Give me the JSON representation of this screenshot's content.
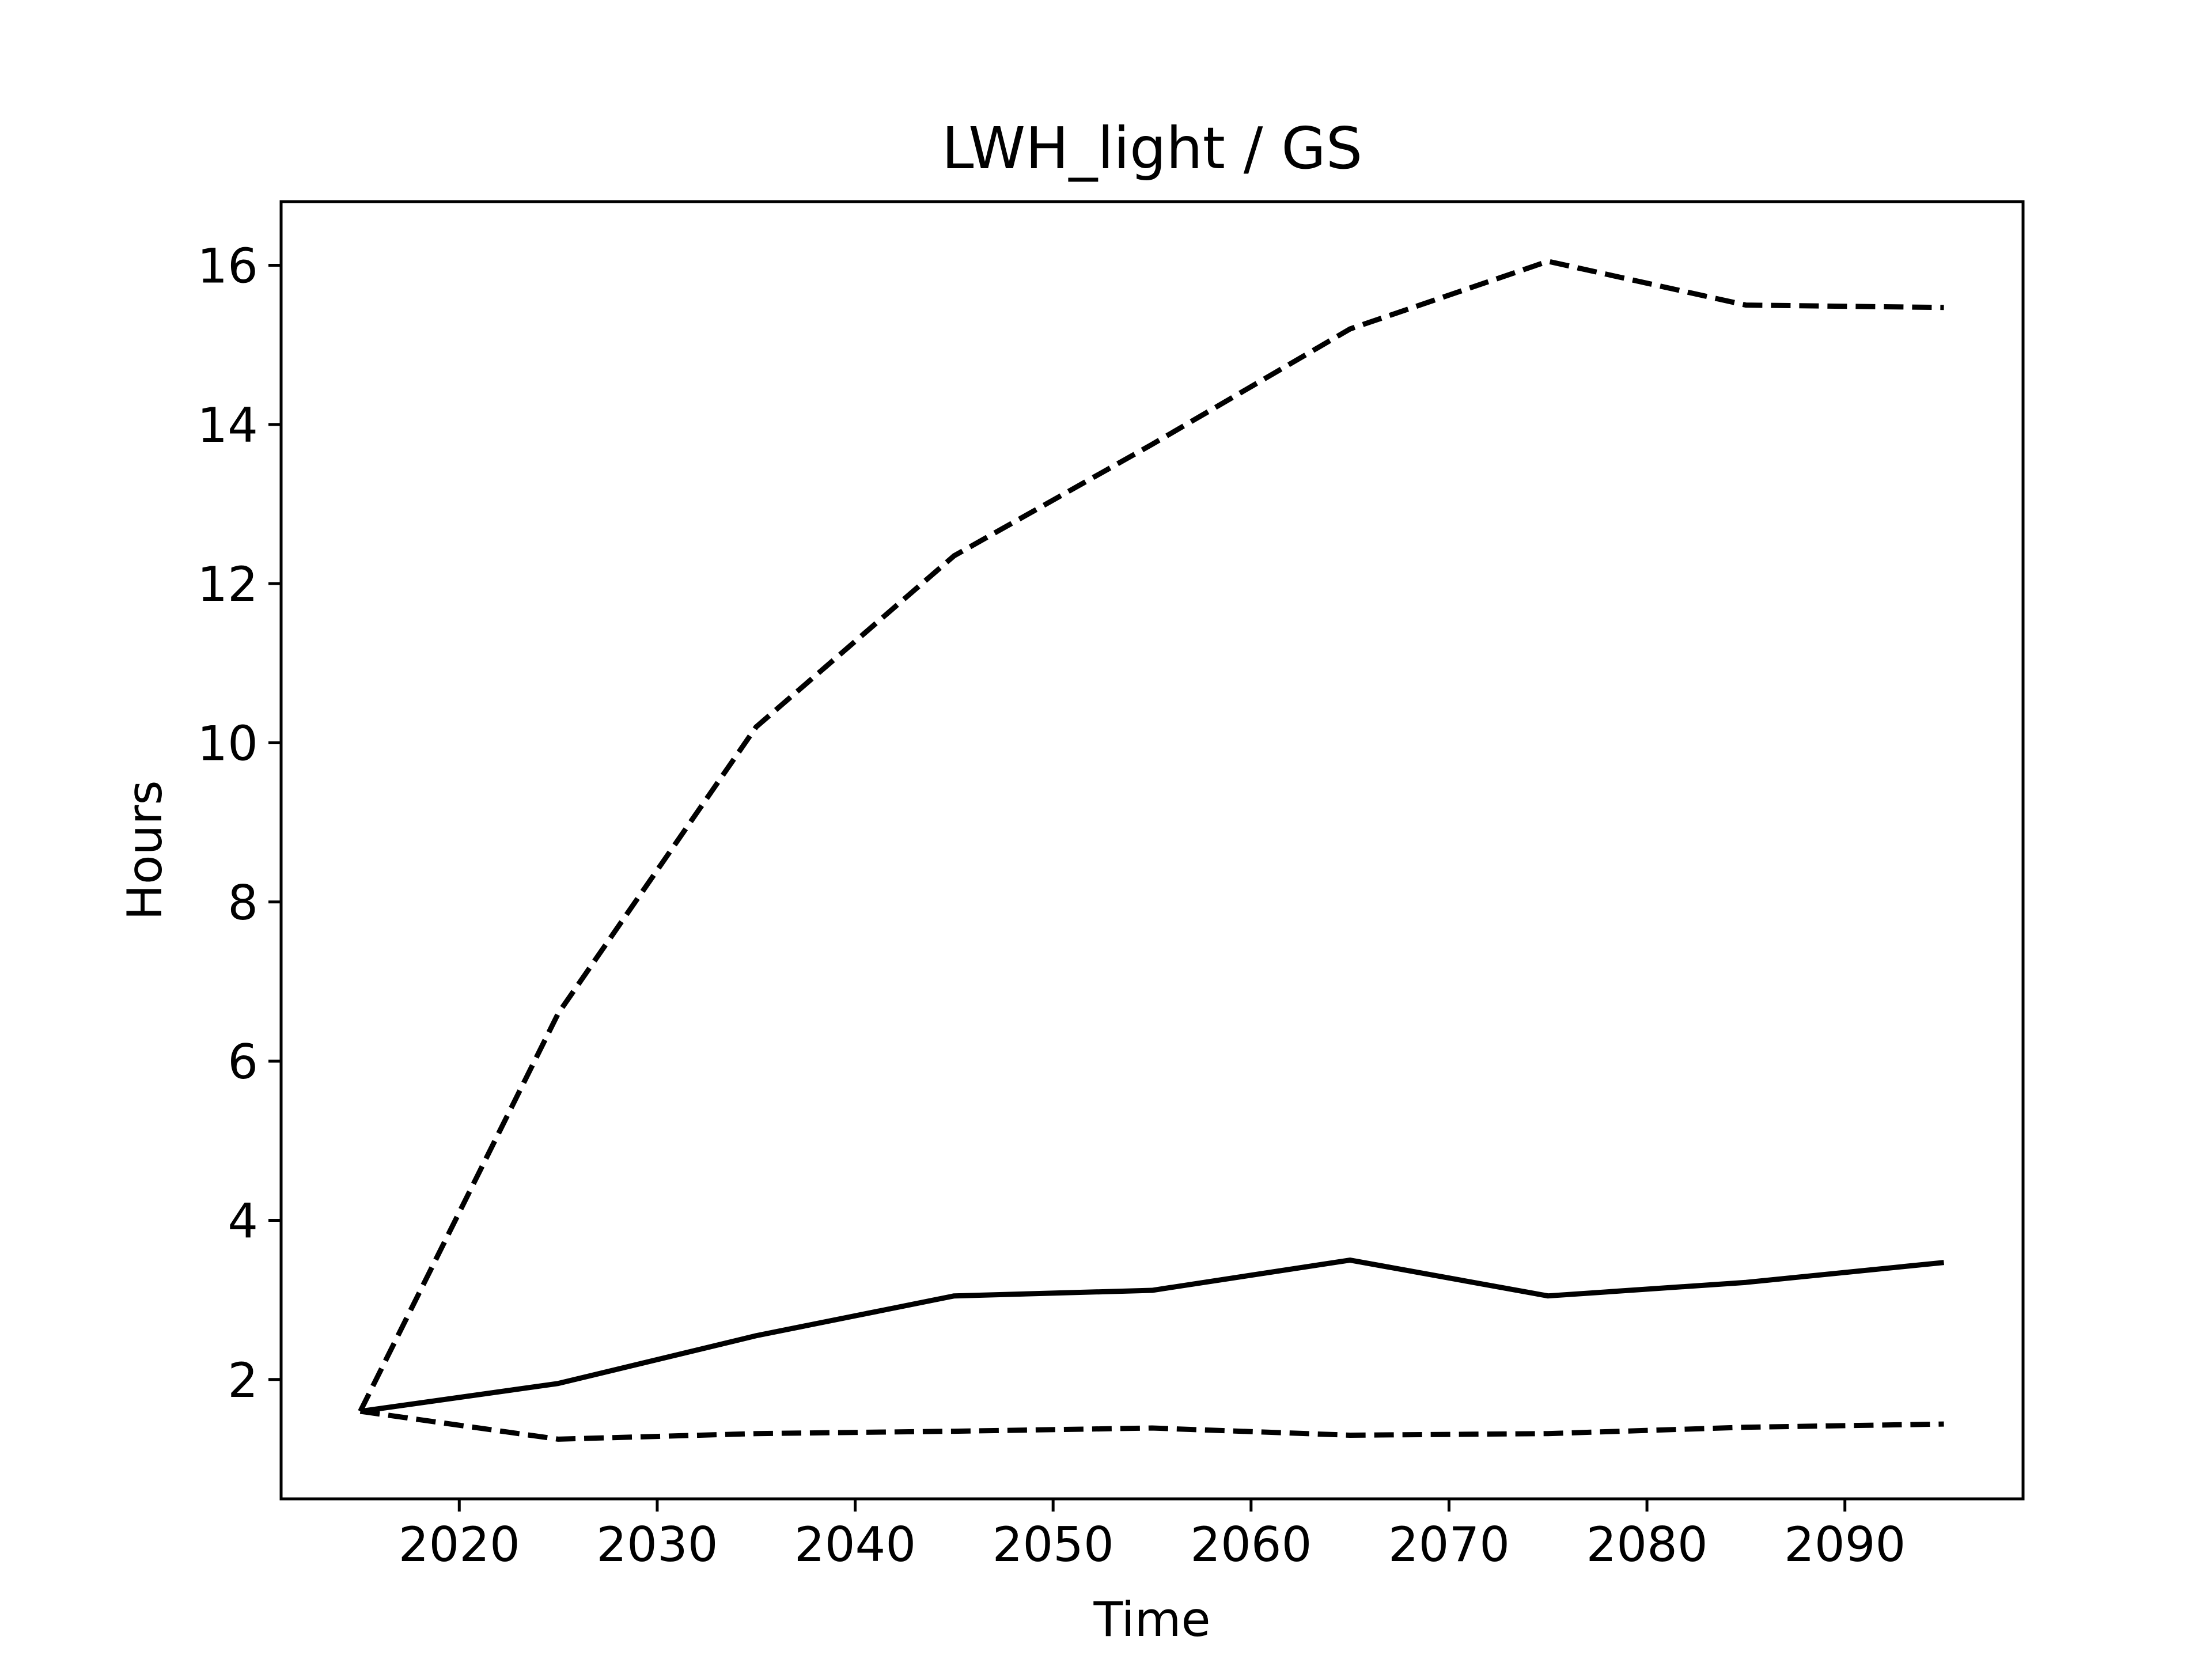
{
  "chart_data": {
    "type": "line",
    "title": "LWH_light / GS",
    "xlabel": "Time",
    "ylabel": "Hours",
    "x": [
      2015,
      2025,
      2035,
      2045,
      2055,
      2065,
      2075,
      2085,
      2095
    ],
    "xlim": [
      2011,
      2099
    ],
    "ylim": [
      0.5,
      16.8
    ],
    "xticks": [
      2020,
      2030,
      2040,
      2050,
      2060,
      2070,
      2080,
      2090
    ],
    "yticks": [
      2,
      4,
      6,
      8,
      10,
      12,
      14,
      16
    ],
    "grid": false,
    "legend": "none",
    "series": [
      {
        "style": "solid",
        "color": "#000000",
        "values": [
          1.6,
          1.95,
          2.55,
          3.05,
          3.12,
          3.5,
          3.05,
          3.22,
          3.47
        ]
      },
      {
        "style": "dashed",
        "color": "#000000",
        "values": [
          1.6,
          6.6,
          10.2,
          12.35,
          13.75,
          15.2,
          16.05,
          15.5,
          15.47
        ]
      },
      {
        "style": "dashed",
        "color": "#000000",
        "values": [
          1.6,
          1.25,
          1.32,
          1.35,
          1.39,
          1.3,
          1.32,
          1.4,
          1.44
        ]
      }
    ]
  }
}
